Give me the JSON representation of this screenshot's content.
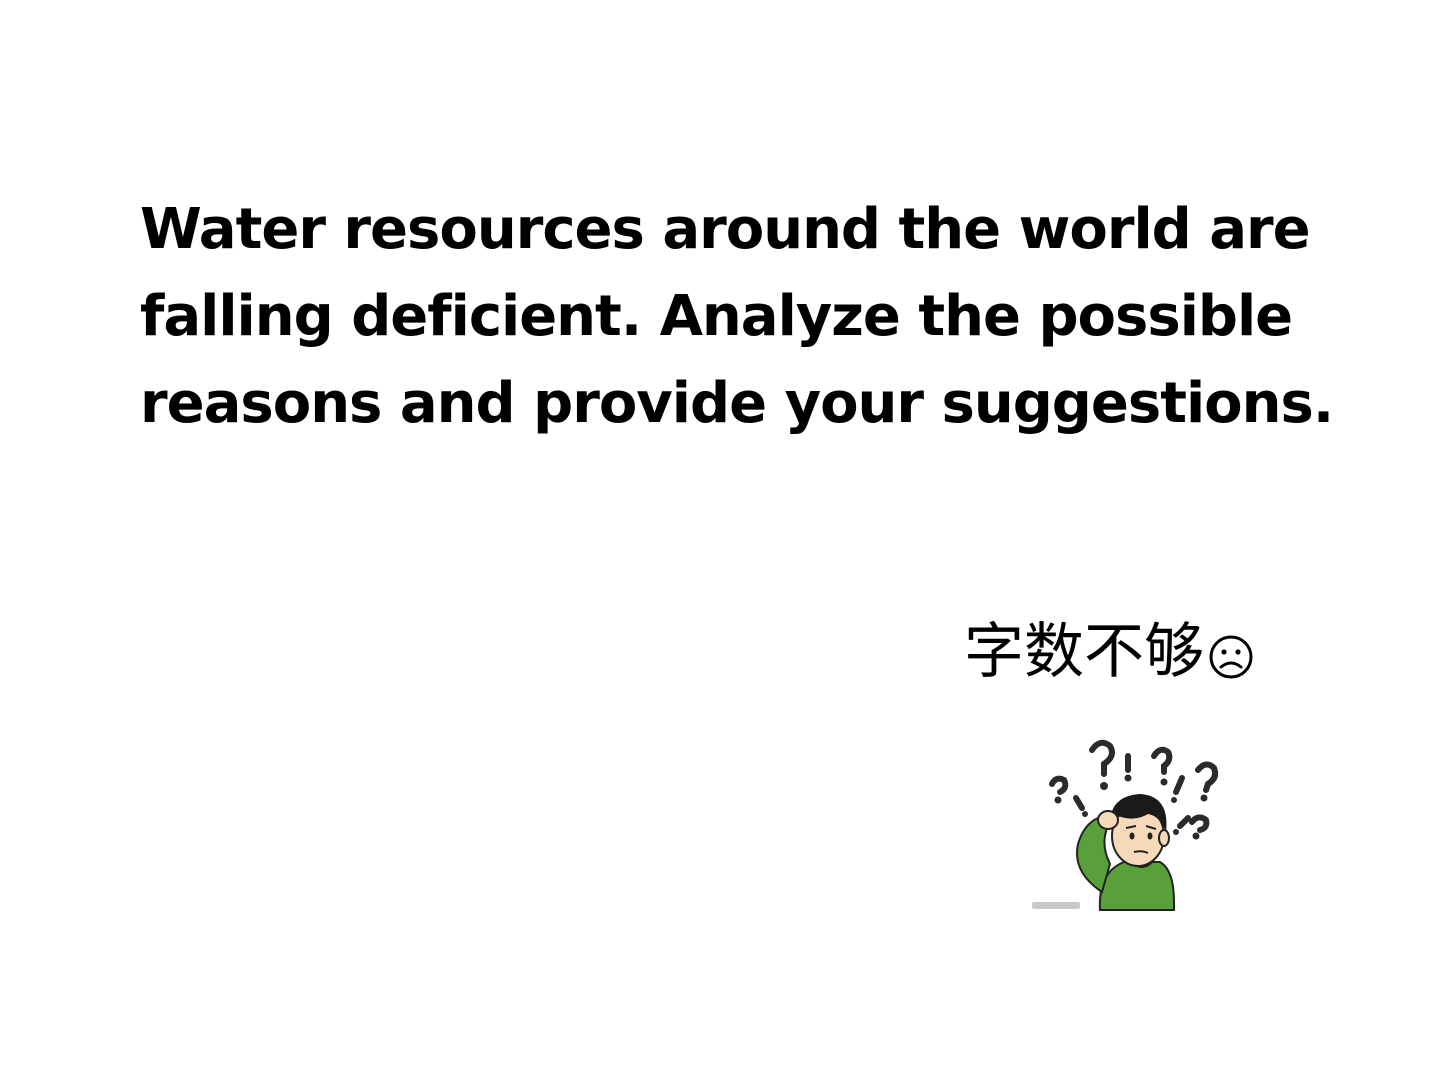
{
  "slide": {
    "prompt_lines": [
      "Water resources around the world are",
      "falling deficient. Analyze the possible",
      "reasons and provide your suggestions."
    ],
    "note": {
      "text": "字数不够",
      "icon": "frown-icon"
    },
    "illustration": {
      "icon": "confused-person-icon",
      "colors": {
        "shirt": "#5aa03a",
        "hair": "#1a1a1a",
        "skin": "#f6d9b8",
        "marks": "#2b2b2b",
        "ground": "#c8c8c8"
      }
    }
  }
}
